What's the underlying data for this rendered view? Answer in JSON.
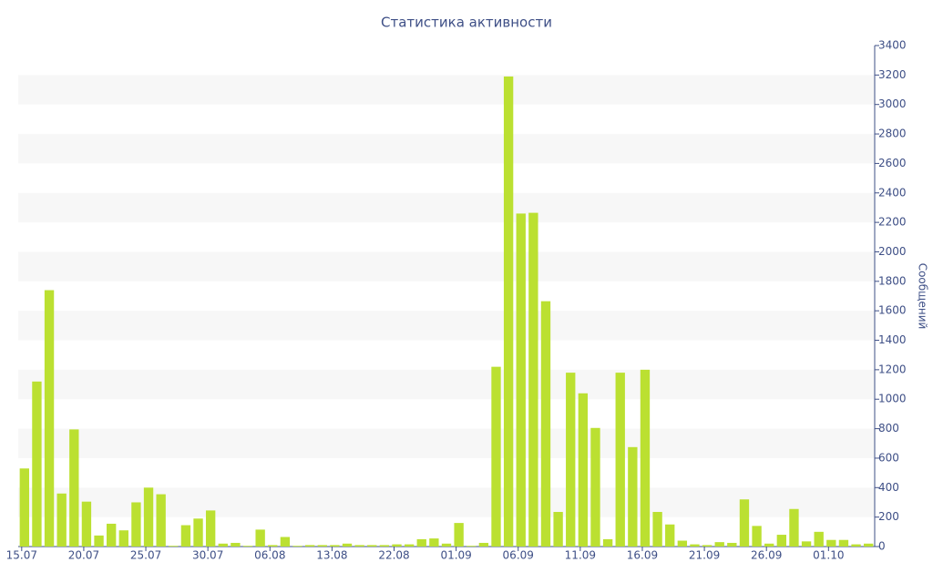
{
  "chart_data": {
    "type": "bar",
    "title": "Статистика активности",
    "y_axis_label": "Сообщений",
    "categories": [
      "15.07",
      null,
      null,
      null,
      null,
      "20.07",
      null,
      null,
      null,
      null,
      "25.07",
      null,
      null,
      null,
      null,
      "30.07",
      null,
      null,
      null,
      null,
      "06.08",
      null,
      null,
      null,
      null,
      "13.08",
      null,
      null,
      null,
      null,
      "22.08",
      null,
      null,
      null,
      null,
      "01.09",
      null,
      null,
      null,
      null,
      "06.09",
      null,
      null,
      null,
      null,
      "11.09",
      null,
      null,
      null,
      null,
      "16.09",
      null,
      null,
      null,
      null,
      "21.09",
      null,
      null,
      null,
      null,
      "26.09",
      null,
      null,
      null,
      null,
      "01.10",
      null,
      null,
      null
    ],
    "values": [
      530,
      1120,
      1740,
      360,
      795,
      305,
      75,
      155,
      110,
      300,
      400,
      355,
      5,
      145,
      190,
      245,
      20,
      25,
      5,
      115,
      10,
      65,
      5,
      10,
      10,
      10,
      20,
      10,
      10,
      10,
      15,
      15,
      50,
      55,
      20,
      160,
      5,
      25,
      1220,
      3190,
      2260,
      2265,
      1665,
      235,
      1180,
      1040,
      805,
      50,
      1180,
      675,
      1200,
      235,
      150,
      40,
      15,
      10,
      30,
      25,
      320,
      140,
      20,
      80,
      255,
      35,
      100,
      45,
      45,
      15,
      20
    ],
    "color": "#bbe031",
    "band_color": "#f7f7f7",
    "ylim": [
      0,
      3400
    ],
    "yticks": [
      0,
      200,
      400,
      600,
      800,
      1000,
      1200,
      1400,
      1600,
      1800,
      2000,
      2200,
      2400,
      2600,
      2800,
      3000,
      3200,
      3400
    ],
    "grid": "bands",
    "y_axis_position": "right"
  }
}
